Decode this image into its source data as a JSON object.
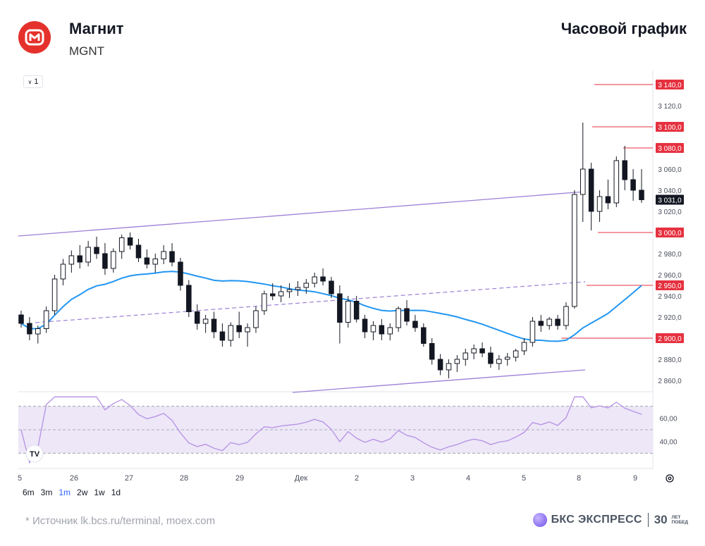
{
  "header": {
    "company": "Магнит",
    "ticker": "MGNT",
    "chart_title": "Часовой график",
    "logo_icon": "magnit-logo-icon"
  },
  "toolbar": {
    "interval_value": "1"
  },
  "ranges": [
    "6m",
    "3m",
    "1m",
    "2w",
    "1w",
    "1d"
  ],
  "active_range": "1m",
  "footer": {
    "source": "*  Источник lk.bcs.ru/terminal, moex.com",
    "brand": "БКС ЭКСПРЕСС",
    "anniversary_num": "30",
    "anniversary_line1": "ЛЕТ",
    "anniversary_line2": "ПОБЕД"
  },
  "colors": {
    "candle": "#131722",
    "ma": "#2196f3",
    "channel": "#9c7fd6",
    "level": "#e5313f",
    "rsi": "#b590e3",
    "rsi_band": "#ede7f8"
  },
  "chart_data": {
    "type": "candlestick",
    "price_axis": {
      "ticks": [
        "3 140,0",
        "3 120,0",
        "3 100,0",
        "3 080,0",
        "3 060,0",
        "3 040,0",
        "3 031,0",
        "3 020,0",
        "3 000,0",
        "2 980,0",
        "2 960,0",
        "2 950,0",
        "2 940,0",
        "2 920,0",
        "2 900,0",
        "2 880,0",
        "2 860,0"
      ],
      "highlighted": [
        "3 140,0",
        "3 100,0",
        "3 080,0",
        "3 000,0",
        "2 950,0",
        "2 900,0"
      ],
      "last_price": "3 031,0",
      "range": [
        2850,
        3150
      ]
    },
    "x_ticks": [
      "5",
      "26",
      "27",
      "28",
      "29",
      "Дек",
      "2",
      "3",
      "4",
      "5",
      "8",
      "9"
    ],
    "levels": [
      3140,
      3100,
      3080,
      3000,
      2950,
      2900
    ],
    "rsi_axis": {
      "ticks": [
        "60,00",
        "40,00"
      ],
      "bands": [
        70,
        50,
        30
      ]
    },
    "candles": [
      [
        2922,
        2926,
        2910,
        2914
      ],
      [
        2914,
        2920,
        2898,
        2904
      ],
      [
        2904,
        2912,
        2895,
        2909
      ],
      [
        2909,
        2930,
        2905,
        2926
      ],
      [
        2926,
        2960,
        2922,
        2956
      ],
      [
        2956,
        2975,
        2950,
        2970
      ],
      [
        2970,
        2983,
        2962,
        2978
      ],
      [
        2978,
        2988,
        2966,
        2972
      ],
      [
        2972,
        2992,
        2968,
        2986
      ],
      [
        2986,
        2996,
        2975,
        2980
      ],
      [
        2980,
        2990,
        2960,
        2966
      ],
      [
        2966,
        2985,
        2962,
        2982
      ],
      [
        2982,
        2998,
        2975,
        2995
      ],
      [
        2995,
        3000,
        2984,
        2988
      ],
      [
        2988,
        2994,
        2972,
        2976
      ],
      [
        2976,
        2984,
        2966,
        2970
      ],
      [
        2970,
        2980,
        2962,
        2975
      ],
      [
        2975,
        2988,
        2970,
        2982
      ],
      [
        2982,
        2990,
        2968,
        2972
      ],
      [
        2972,
        2976,
        2945,
        2950
      ],
      [
        2950,
        2955,
        2920,
        2925
      ],
      [
        2925,
        2932,
        2908,
        2914
      ],
      [
        2914,
        2922,
        2905,
        2918
      ],
      [
        2918,
        2925,
        2900,
        2906
      ],
      [
        2906,
        2914,
        2892,
        2898
      ],
      [
        2898,
        2915,
        2892,
        2912
      ],
      [
        2912,
        2925,
        2900,
        2906
      ],
      [
        2906,
        2914,
        2892,
        2910
      ],
      [
        2910,
        2930,
        2905,
        2926
      ],
      [
        2926,
        2945,
        2922,
        2942
      ],
      [
        2942,
        2952,
        2936,
        2940
      ],
      [
        2940,
        2950,
        2934,
        2944
      ],
      [
        2944,
        2952,
        2938,
        2946
      ],
      [
        2946,
        2954,
        2940,
        2948
      ],
      [
        2948,
        2956,
        2942,
        2952
      ],
      [
        2952,
        2962,
        2948,
        2958
      ],
      [
        2958,
        2966,
        2950,
        2954
      ],
      [
        2954,
        2958,
        2938,
        2942
      ],
      [
        2942,
        2950,
        2895,
        2915
      ],
      [
        2915,
        2940,
        2910,
        2935
      ],
      [
        2935,
        2940,
        2915,
        2918
      ],
      [
        2918,
        2922,
        2900,
        2906
      ],
      [
        2906,
        2916,
        2898,
        2912
      ],
      [
        2912,
        2918,
        2898,
        2904
      ],
      [
        2904,
        2914,
        2898,
        2910
      ],
      [
        2910,
        2930,
        2906,
        2928
      ],
      [
        2928,
        2936,
        2912,
        2916
      ],
      [
        2916,
        2922,
        2906,
        2910
      ],
      [
        2910,
        2914,
        2892,
        2895
      ],
      [
        2895,
        2900,
        2875,
        2880
      ],
      [
        2880,
        2885,
        2865,
        2870
      ],
      [
        2870,
        2880,
        2862,
        2876
      ],
      [
        2876,
        2884,
        2868,
        2880
      ],
      [
        2880,
        2890,
        2874,
        2886
      ],
      [
        2886,
        2894,
        2880,
        2890
      ],
      [
        2890,
        2896,
        2882,
        2886
      ],
      [
        2886,
        2892,
        2872,
        2876
      ],
      [
        2876,
        2884,
        2870,
        2880
      ],
      [
        2880,
        2886,
        2874,
        2882
      ],
      [
        2882,
        2890,
        2878,
        2888
      ],
      [
        2888,
        2900,
        2884,
        2896
      ],
      [
        2896,
        2920,
        2892,
        2916
      ],
      [
        2916,
        2922,
        2906,
        2912
      ],
      [
        2912,
        2920,
        2908,
        2918
      ],
      [
        2918,
        2922,
        2908,
        2912
      ],
      [
        2912,
        2934,
        2908,
        2930
      ],
      [
        2930,
        3040,
        2928,
        3036
      ],
      [
        3036,
        3104,
        3010,
        3060
      ],
      [
        3060,
        3066,
        3002,
        3020
      ],
      [
        3020,
        3040,
        3010,
        3034
      ],
      [
        3034,
        3050,
        3022,
        3028
      ],
      [
        3028,
        3072,
        3024,
        3068
      ],
      [
        3068,
        3082,
        3040,
        3050
      ],
      [
        3050,
        3060,
        3030,
        3040
      ],
      [
        3040,
        3060,
        3028,
        3031
      ]
    ]
  }
}
